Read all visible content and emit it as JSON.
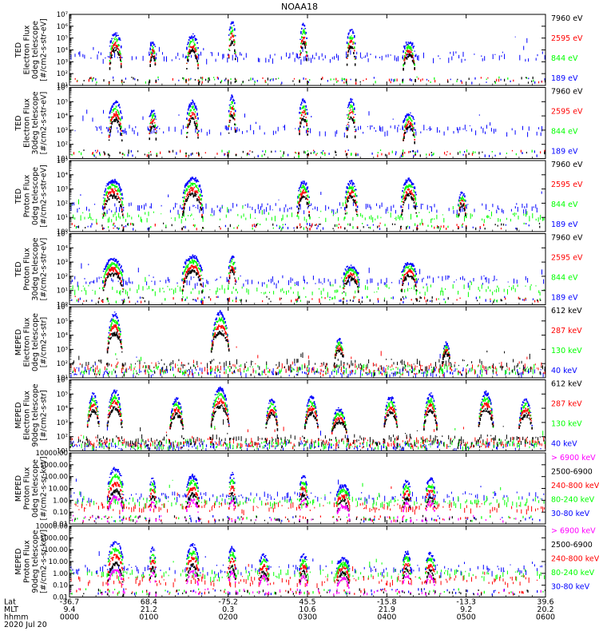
{
  "title": "NOAA18",
  "colors": {
    "blue": "#0000ff",
    "red": "#ff0000",
    "green": "#00ff00",
    "black": "#000000",
    "magenta": "#ff00ff"
  },
  "footer": {
    "row_labels": [
      "Lat",
      "MLT",
      "hhmm"
    ],
    "date": "2020 Jul 20",
    "columns": [
      {
        "lat": "-36.7",
        "mlt": "9.4",
        "hhmm": "0000"
      },
      {
        "lat": "68.4",
        "mlt": "21.2",
        "hhmm": "0100"
      },
      {
        "lat": "-75.2",
        "mlt": "0.3",
        "hhmm": "0200"
      },
      {
        "lat": "45.5",
        "mlt": "10.6",
        "hhmm": "0300"
      },
      {
        "lat": "-15.8",
        "mlt": "21.9",
        "hhmm": "0400"
      },
      {
        "lat": "-13.3",
        "mlt": "9.2",
        "hhmm": "0500"
      },
      {
        "lat": "39.6",
        "mlt": "20.2",
        "hhmm": "0600"
      }
    ]
  },
  "chart_data": [
    {
      "type": "scatter",
      "ylabel": [
        "TED",
        "Electron Flux",
        "0deg telescope",
        "[#/cm2-s-str-eV]"
      ],
      "yscale": "log",
      "ticks": [
        "10¹",
        "10²",
        "10³",
        "10⁴",
        "10⁵",
        "10⁶",
        "10⁷"
      ],
      "legend": [
        {
          "label": "7960 eV",
          "color": "black"
        },
        {
          "label": "2595 eV",
          "color": "red"
        },
        {
          "label": "844 eV",
          "color": "green"
        },
        {
          "label": "189 eV",
          "color": "blue"
        }
      ],
      "pattern": "ted_e0",
      "seed": 11
    },
    {
      "type": "scatter",
      "ylabel": [
        "TED",
        "Electron Flux",
        "30deg telescope",
        "[#/cm2-s-str-eV]"
      ],
      "yscale": "log",
      "ticks": [
        "10¹",
        "10²",
        "10³",
        "10⁴",
        "10⁵",
        "10⁶"
      ],
      "legend": [
        {
          "label": "7960 eV",
          "color": "black"
        },
        {
          "label": "2595 eV",
          "color": "red"
        },
        {
          "label": "844 eV",
          "color": "green"
        },
        {
          "label": "189 eV",
          "color": "blue"
        }
      ],
      "pattern": "ted_e30",
      "seed": 23
    },
    {
      "type": "scatter",
      "ylabel": [
        "TED",
        "Proton Flux",
        "0deg telescope",
        "[#/cm2-s-str-eV]"
      ],
      "yscale": "log",
      "ticks": [
        "10⁰",
        "10¹",
        "10²",
        "10³",
        "10⁴",
        "10⁵"
      ],
      "legend": [
        {
          "label": "7960 eV",
          "color": "black"
        },
        {
          "label": "2595 eV",
          "color": "red"
        },
        {
          "label": "844 eV",
          "color": "green"
        },
        {
          "label": "189 eV",
          "color": "blue"
        }
      ],
      "pattern": "ted_p0",
      "seed": 37
    },
    {
      "type": "scatter",
      "ylabel": [
        "TED",
        "Proton Flux",
        "30deg telescope",
        "[#/cm2-s-str-eV]"
      ],
      "yscale": "log",
      "ticks": [
        "10⁰",
        "10¹",
        "10²",
        "10³",
        "10⁴",
        "10⁵"
      ],
      "legend": [
        {
          "label": "7960 eV",
          "color": "black"
        },
        {
          "label": "2595 eV",
          "color": "red"
        },
        {
          "label": "844 eV",
          "color": "green"
        },
        {
          "label": "189 eV",
          "color": "blue"
        }
      ],
      "pattern": "ted_p30",
      "seed": 41
    },
    {
      "type": "scatter",
      "ylabel": [
        "MEPED",
        "Electron Flux",
        "0deg telescope",
        "[#/cm2-s-str]"
      ],
      "yscale": "log",
      "ticks": [
        "10¹",
        "10²",
        "10³",
        "10⁴",
        "10⁵",
        "10⁶"
      ],
      "legend": [
        {
          "label": "612 keV",
          "color": "black"
        },
        {
          "label": "287 keV",
          "color": "red"
        },
        {
          "label": "130 keV",
          "color": "green"
        },
        {
          "label": "40 keV",
          "color": "blue"
        }
      ],
      "pattern": "meped_e0",
      "seed": 53
    },
    {
      "type": "scatter",
      "ylabel": [
        "MEPED",
        "Electron Flux",
        "90deg telescope",
        "[#/cm2-s-str]"
      ],
      "yscale": "log",
      "ticks": [
        "10¹",
        "10²",
        "10³",
        "10⁴",
        "10⁵",
        "10⁶"
      ],
      "legend": [
        {
          "label": "612 keV",
          "color": "black"
        },
        {
          "label": "287 keV",
          "color": "red"
        },
        {
          "label": "130 keV",
          "color": "green"
        },
        {
          "label": "40 keV",
          "color": "blue"
        }
      ],
      "pattern": "meped_e90",
      "seed": 67
    },
    {
      "type": "scatter",
      "ylabel": [
        "MEPED",
        "Proton Flux",
        "0deg telescope",
        "[#/cm2-s-sr-keV]"
      ],
      "yscale": "log",
      "ticks": [
        "0.01",
        "0.10",
        "1.00",
        "10.00",
        "100.00",
        "1000.00",
        "10000.00"
      ],
      "legend": [
        {
          "label": "> 6900 keV",
          "color": "magenta"
        },
        {
          "label": "2500-6900",
          "color": "black"
        },
        {
          "label": "240-800 keV",
          "color": "red"
        },
        {
          "label": "80-240 keV",
          "color": "green"
        },
        {
          "label": "30-80 keV",
          "color": "blue"
        }
      ],
      "pattern": "meped_p0",
      "seed": 79
    },
    {
      "type": "scatter",
      "ylabel": [
        "MEPED",
        "Proton Flux",
        "90deg telescope",
        "[#/cm2-s-sr-keV]"
      ],
      "yscale": "log",
      "ticks": [
        "0.01",
        "0.10",
        "1.00",
        "10.00",
        "100.00",
        "1000.00",
        "10000.00"
      ],
      "legend": [
        {
          "label": "> 6900 keV",
          "color": "magenta"
        },
        {
          "label": "2500-6900",
          "color": "black"
        },
        {
          "label": "240-800 keV",
          "color": "red"
        },
        {
          "label": "80-240 keV",
          "color": "green"
        },
        {
          "label": "30-80 keV",
          "color": "blue"
        }
      ],
      "pattern": "meped_p90",
      "seed": 97
    }
  ]
}
